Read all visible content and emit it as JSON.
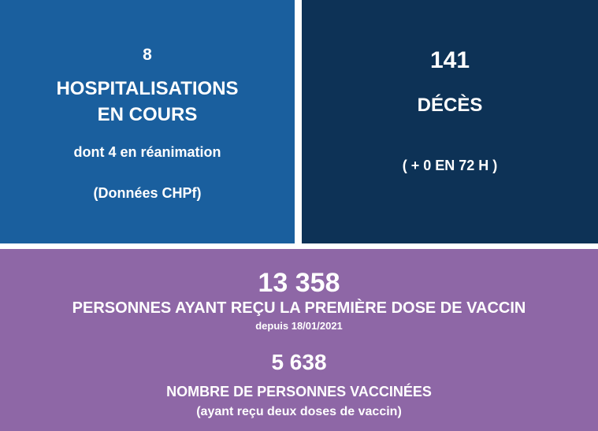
{
  "colors": {
    "hospitalisations_bg": "#1a5f9e",
    "deces_bg": "#0d3256",
    "vaccination_bg": "#8e67a6",
    "text": "#ffffff"
  },
  "hospitalisations": {
    "count": "8",
    "title_line1": "HOSPITALISATIONS",
    "title_line2": "EN COURS",
    "reanimation": "dont 4 en réanimation",
    "source": "(Données CHPf)"
  },
  "deces": {
    "count": "141",
    "title": "DÉCÈS",
    "delta": "( + 0 EN 72 H )"
  },
  "vaccination": {
    "first_dose_count": "13 358",
    "first_dose_label": "PERSONNES AYANT REÇU LA PREMIÈRE DOSE DE VACCIN",
    "since": "depuis 18/01/2021",
    "fully_vaccinated_count": "5 638",
    "fully_vaccinated_label": "NOMBRE DE PERSONNES VACCINÉES",
    "fully_vaccinated_note": "(ayant reçu deux doses de vaccin)"
  }
}
